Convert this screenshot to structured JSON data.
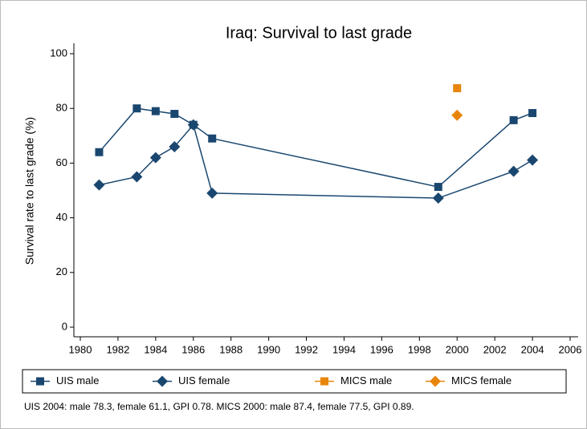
{
  "chart_data": {
    "type": "line",
    "title": "Iraq: Survival to last grade",
    "y_label": "Survival rate to last grade (%)",
    "note": "UIS 2004: male 78.3, female 61.1, GPI 0.78. MICS 2000: male 87.4, female 77.5, GPI 0.89.",
    "xlim": [
      1980,
      2006
    ],
    "xticks": [
      1980,
      1982,
      1984,
      1986,
      1988,
      1990,
      1992,
      1994,
      1996,
      1998,
      2000,
      2002,
      2004,
      2006
    ],
    "ylim": [
      0,
      100
    ],
    "yticks": [
      0,
      20,
      40,
      60,
      80,
      100
    ],
    "series": [
      {
        "name": "UIS male",
        "color": "#1a476f",
        "marker": "square",
        "line": true,
        "x": [
          1981,
          1983,
          1984,
          1985,
          1986,
          1987,
          1999,
          2003,
          2004
        ],
        "values": [
          64,
          80,
          79,
          78,
          74,
          69,
          51.3,
          75.7,
          78.3
        ]
      },
      {
        "name": "UIS female",
        "color": "#1a476f",
        "marker": "diamond",
        "line": true,
        "x": [
          1981,
          1983,
          1984,
          1985,
          1986,
          1987,
          1999,
          2003,
          2004
        ],
        "values": [
          52,
          55,
          62,
          66,
          74,
          49,
          47.2,
          57,
          61.1
        ]
      },
      {
        "name": "MICS male",
        "color": "#e8860c",
        "marker": "square",
        "line": false,
        "x": [
          2000
        ],
        "values": [
          87.4
        ]
      },
      {
        "name": "MICS female",
        "color": "#e8860c",
        "marker": "diamond",
        "line": false,
        "x": [
          2000
        ],
        "values": [
          77.5
        ]
      }
    ]
  }
}
